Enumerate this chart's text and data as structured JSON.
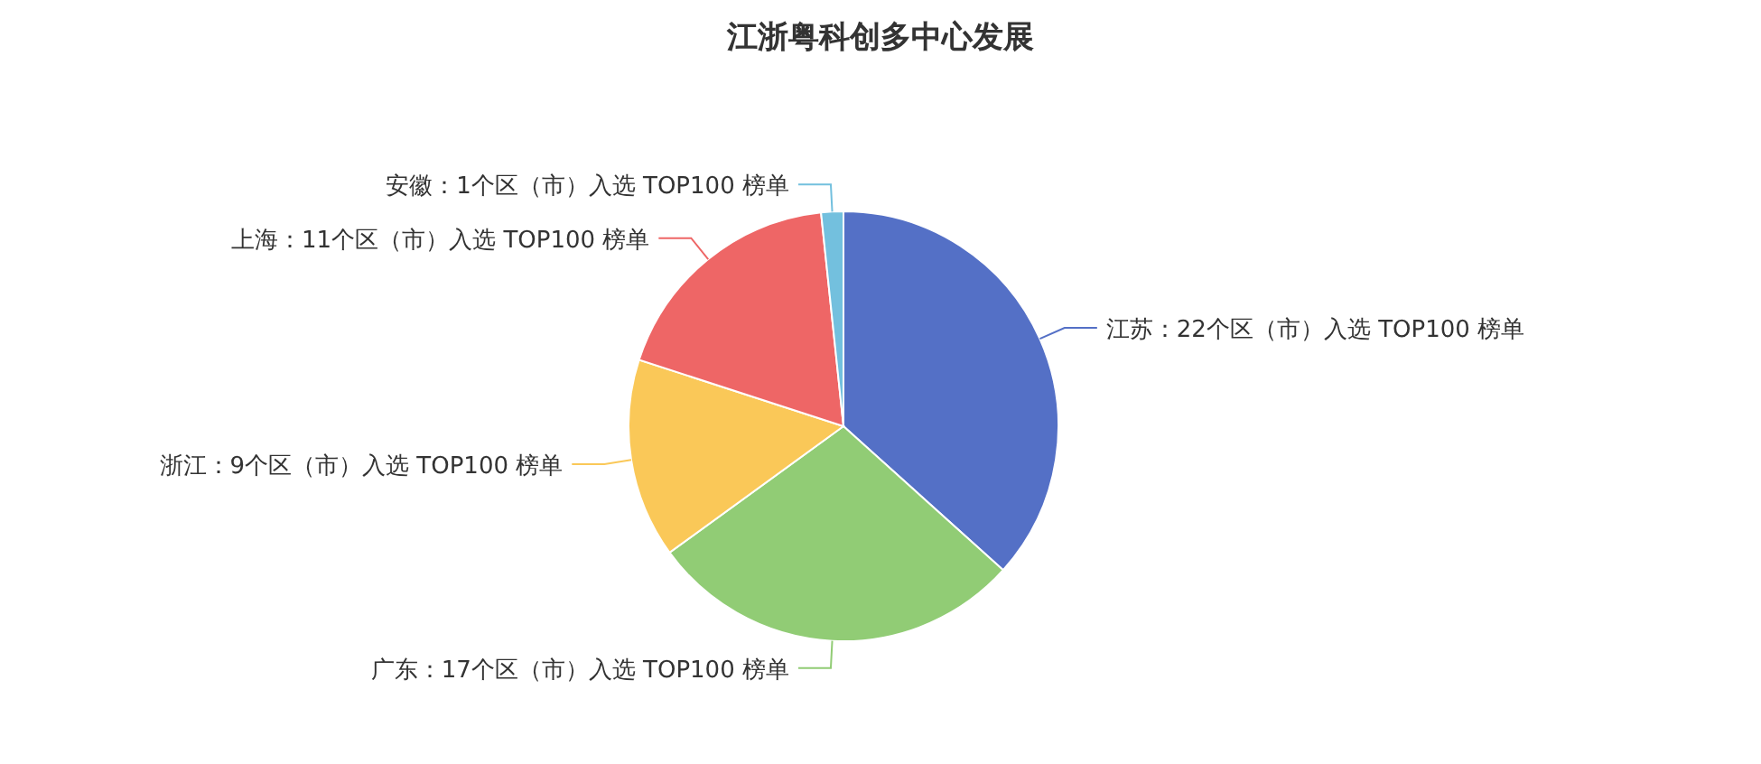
{
  "chart_data": {
    "type": "pie",
    "title": "江浙粤科创多中心发展",
    "categories": [
      "江苏：22个区（市）入选 TOP100 榜单",
      "广东：17个区（市）入选 TOP100 榜单",
      "浙江：9个区（市）入选 TOP100 榜单",
      "上海：11个区（市）入选 TOP100 榜单",
      "安徽：1个区（市）入选 TOP100 榜单"
    ],
    "values": [
      22,
      17,
      9,
      11,
      1
    ],
    "colors": [
      "#5470c6",
      "#91cc75",
      "#fac858",
      "#ee6666",
      "#73c0de"
    ]
  }
}
